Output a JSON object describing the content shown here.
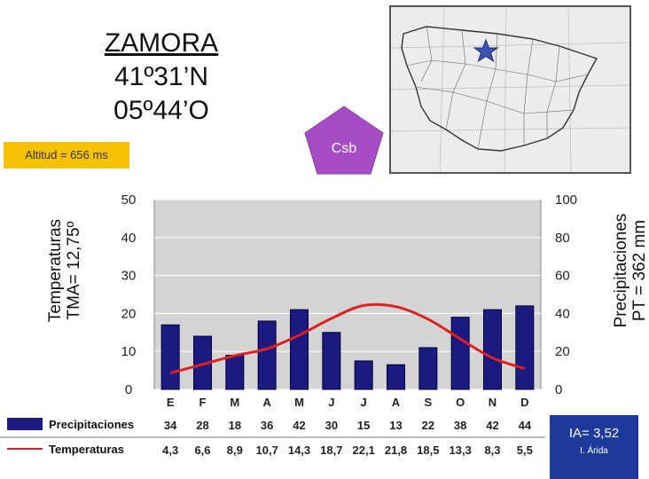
{
  "station": {
    "name": "ZAMORA",
    "lat": "41º31’N",
    "lon": "05º44’O",
    "altitude": "Altitud = 656 ms",
    "climate": "Csb",
    "ia_value": "IA= 3,52",
    "ia_class": "I. Árida"
  },
  "axes": {
    "left_label_1": "Temperaturas",
    "left_label_2": "TMA= 12,75º",
    "right_label_1": "Precipitaciones",
    "right_label_2": "PT = 362 mm"
  },
  "legend": {
    "precip": "Precipitaciones",
    "temp": "Temperaturas"
  },
  "colors": {
    "bars": "#1a1a80",
    "line": "#e02020",
    "plot_bg": "#d4d4d4",
    "pentagon": "#a64cc4",
    "alt_box": "#f6c200",
    "ia_box": "#1e3a9c",
    "star": "#3a55b5"
  },
  "chart_data": {
    "type": "bar",
    "categories": [
      "E",
      "F",
      "M",
      "A",
      "M",
      "J",
      "J",
      "A",
      "S",
      "O",
      "N",
      "D"
    ],
    "series": [
      {
        "name": "Precipitaciones",
        "type": "bar",
        "axis": "right",
        "values": [
          34,
          28,
          18,
          36,
          42,
          30,
          15,
          13,
          22,
          38,
          42,
          44
        ]
      },
      {
        "name": "Temperaturas",
        "type": "line",
        "axis": "left",
        "values": [
          4.3,
          6.6,
          8.9,
          10.7,
          14.3,
          18.7,
          22.1,
          21.8,
          18.5,
          13.3,
          8.3,
          5.5
        ]
      }
    ],
    "temp_labels": [
      "4,3",
      "6,6",
      "8,9",
      "10,7",
      "14,3",
      "18,7",
      "22,1",
      "21,8",
      "18,5",
      "13,3",
      "8,3",
      "5,5"
    ],
    "y_left_ticks": [
      "0",
      "10",
      "20",
      "30",
      "40",
      "50"
    ],
    "y_right_ticks": [
      "0",
      "20",
      "40",
      "60",
      "80",
      "100"
    ],
    "ylim_left": [
      0,
      50
    ],
    "ylim_right": [
      0,
      100
    ],
    "grid": true
  }
}
